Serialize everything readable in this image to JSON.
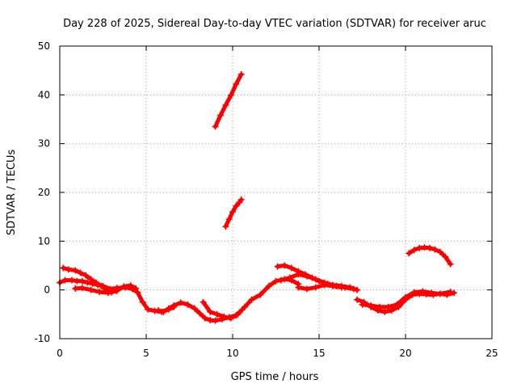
{
  "chart_data": {
    "type": "scatter",
    "title": "Day 228 of 2025, Sidereal Day-to-day VTEC variation (SDTVAR) for receiver aruc",
    "xlabel": "GPS time / hours",
    "ylabel": "SDTVAR / TECUs",
    "xlim": [
      0,
      25
    ],
    "ylim": [
      -10,
      50
    ],
    "xticks": [
      0,
      5,
      10,
      15,
      20,
      25
    ],
    "yticks": [
      -10,
      0,
      10,
      20,
      30,
      40,
      50
    ],
    "grid": true,
    "series": [
      {
        "name": "SDTVAR",
        "color": "#ff0000",
        "marker": "+",
        "tracks": [
          {
            "x": [
              0.0,
              0.3,
              0.7,
              1.0,
              1.3,
              1.6,
              1.9,
              2.2,
              2.5,
              2.9,
              3.3,
              3.8,
              4.2,
              4.5,
              4.8,
              5.1,
              5.5,
              5.9,
              6.3,
              6.6
            ],
            "y": [
              1.5,
              2.0,
              2.0,
              1.8,
              1.8,
              1.5,
              1.3,
              1.0,
              0.8,
              0.2,
              0.4,
              0.5,
              0.2,
              -0.5,
              -2.5,
              -4.0,
              -4.3,
              -4.5,
              -4.0,
              -3.5
            ]
          },
          {
            "x": [
              0.2,
              0.5,
              0.9,
              1.2,
              1.5,
              1.8,
              2.1,
              2.4,
              2.7,
              3.0
            ],
            "y": [
              4.5,
              4.2,
              4.0,
              3.5,
              3.0,
              2.2,
              1.5,
              0.8,
              0.0,
              -0.5
            ]
          },
          {
            "x": [
              0.9,
              1.3,
              1.8,
              2.3,
              2.8,
              3.3,
              3.7,
              4.1,
              4.4
            ],
            "y": [
              0.3,
              0.4,
              0.0,
              -0.4,
              -0.6,
              -0.2,
              0.7,
              0.9,
              0.3
            ]
          },
          {
            "x": [
              5.7,
              6.0,
              6.3,
              6.6,
              7.0,
              7.4,
              7.8,
              8.1,
              8.4,
              8.7,
              9.0,
              9.4,
              9.8,
              10.2,
              10.4
            ],
            "y": [
              -4.2,
              -4.5,
              -3.8,
              -3.2,
              -2.6,
              -3.0,
              -3.8,
              -4.8,
              -5.8,
              -6.2,
              -6.3,
              -6.0,
              -5.6,
              -5.2,
              -4.6
            ]
          },
          {
            "x": [
              8.3,
              8.7,
              9.1,
              9.5,
              9.9,
              10.3,
              10.7,
              11.1,
              11.6,
              12.1,
              12.5,
              13.0,
              13.4,
              13.8
            ],
            "y": [
              -2.5,
              -4.5,
              -5.0,
              -5.5,
              -5.8,
              -5.0,
              -3.5,
              -2.0,
              -1.0,
              0.8,
              1.8,
              2.2,
              2.0,
              1.2
            ]
          },
          {
            "x": [
              12.6,
              13.0,
              13.4,
              13.8,
              14.2,
              14.6,
              15.0,
              15.5,
              16.0,
              16.5,
              17.0
            ],
            "y": [
              4.8,
              5.0,
              4.5,
              3.8,
              3.2,
              2.5,
              1.8,
              1.2,
              0.8,
              0.5,
              0.2
            ]
          },
          {
            "x": [
              12.8,
              13.3,
              13.8,
              14.3,
              14.8,
              15.3,
              15.8,
              16.3,
              16.8,
              17.2
            ],
            "y": [
              2.0,
              2.5,
              3.2,
              2.8,
              2.2,
              1.5,
              1.0,
              0.8,
              0.5,
              0.0
            ]
          },
          {
            "x": [
              13.8,
              14.3,
              14.8,
              15.3,
              15.8,
              16.3
            ],
            "y": [
              0.5,
              0.2,
              0.5,
              1.0,
              0.8,
              0.5
            ]
          },
          {
            "x": [
              17.2,
              17.6,
              18.0,
              18.4,
              18.8,
              19.2,
              19.6,
              20.0,
              20.4,
              20.8,
              21.2,
              21.6,
              22.0,
              22.4,
              22.8
            ],
            "y": [
              -2.0,
              -2.5,
              -3.5,
              -4.2,
              -4.5,
              -4.2,
              -3.5,
              -2.0,
              -1.0,
              -0.8,
              -0.9,
              -1.0,
              -0.8,
              -1.0,
              -0.6
            ]
          },
          {
            "x": [
              17.5,
              18.0,
              18.5,
              19.0,
              19.5,
              20.0,
              20.5,
              21.0,
              21.5,
              22.0,
              22.6
            ],
            "y": [
              -3.0,
              -3.2,
              -3.5,
              -3.5,
              -3.0,
              -1.5,
              -0.5,
              -0.3,
              -0.6,
              -0.8,
              -0.4
            ]
          },
          {
            "x": [
              20.2,
              20.5,
              20.8,
              21.1,
              21.4,
              21.7,
              22.0,
              22.3,
              22.6
            ],
            "y": [
              7.5,
              8.2,
              8.6,
              8.7,
              8.6,
              8.3,
              7.8,
              6.8,
              5.3
            ]
          },
          {
            "x": [
              9.0,
              9.3,
              9.6,
              9.9,
              10.2,
              10.5
            ],
            "y": [
              33.5,
              35.8,
              37.9,
              39.9,
              42.2,
              44.2
            ]
          },
          {
            "x": [
              9.6,
              9.8,
              10.0,
              10.2,
              10.4,
              10.5
            ],
            "y": [
              13.0,
              14.5,
              16.0,
              17.2,
              18.0,
              18.5
            ]
          }
        ]
      }
    ]
  }
}
